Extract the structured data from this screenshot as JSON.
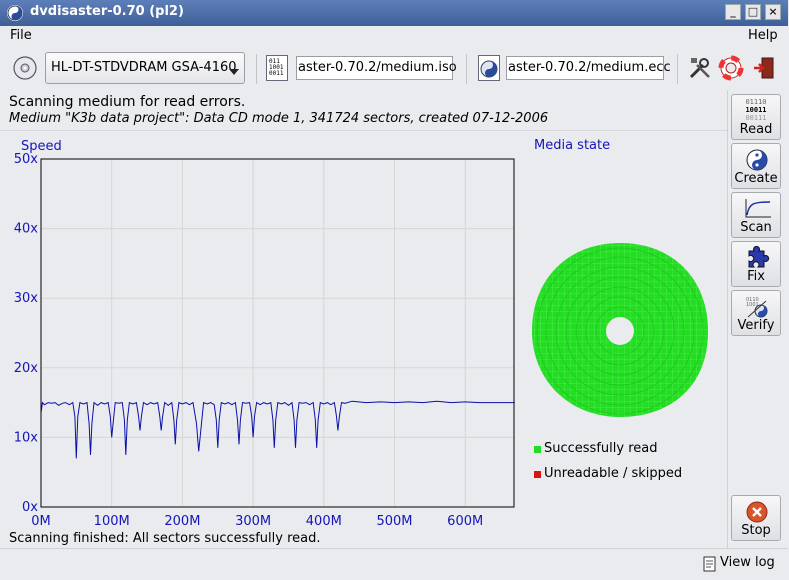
{
  "window": {
    "title": "dvdisaster-0.70 (pl2)"
  },
  "menu": {
    "file": "File",
    "help": "Help"
  },
  "toolbar": {
    "drive": "HL-DT-STDVDRAM GSA-4160",
    "image_file": "aster-0.70.2/medium.iso",
    "ecc_file": "aster-0.70.2/medium.ecc"
  },
  "status": {
    "heading": "Scanning medium for read errors.",
    "medium_info": "Medium \"K3b data project\": Data CD mode 1, 341724 sectors, created 07-12-2006",
    "result": "Scanning finished: All sectors successfully read."
  },
  "speed_chart": {
    "title": "Speed"
  },
  "media_state": {
    "title": "Media state",
    "legend": [
      {
        "label": "Successfully read",
        "color": "#22dd22"
      },
      {
        "label": "Unreadable / skipped",
        "color": "#dd1111"
      }
    ]
  },
  "sidebar": {
    "read": "Read",
    "create": "Create",
    "scan": "Scan",
    "fix": "Fix",
    "verify": "Verify",
    "stop": "Stop",
    "read_icon_lines": [
      "01110",
      "10011",
      "00111"
    ]
  },
  "footer": {
    "view_log": "View log"
  },
  "chart_data": {
    "type": "line",
    "title": "Speed",
    "xlabel": "",
    "ylabel": "",
    "xlim": [
      0,
      670
    ],
    "ylim": [
      0,
      50
    ],
    "x_ticks": [
      "0M",
      "100M",
      "200M",
      "300M",
      "400M",
      "500M",
      "600M"
    ],
    "y_ticks": [
      "0x",
      "10x",
      "20x",
      "30x",
      "40x",
      "50x"
    ],
    "grid": true,
    "series": [
      {
        "color": "#0a10a8",
        "x": [
          0,
          2,
          5,
          10,
          15,
          20,
          25,
          30,
          35,
          40,
          45,
          48,
          50,
          52,
          55,
          60,
          65,
          68,
          70,
          72,
          75,
          80,
          85,
          90,
          95,
          98,
          100,
          103,
          105,
          110,
          115,
          118,
          120,
          122,
          125,
          130,
          135,
          138,
          140,
          142,
          145,
          150,
          155,
          160,
          165,
          168,
          170,
          172,
          175,
          180,
          185,
          188,
          190,
          192,
          195,
          200,
          205,
          210,
          215,
          220,
          223,
          225,
          227,
          230,
          235,
          240,
          245,
          248,
          250,
          252,
          255,
          260,
          265,
          270,
          275,
          278,
          280,
          282,
          285,
          290,
          295,
          298,
          300,
          302,
          305,
          310,
          315,
          320,
          325,
          328,
          330,
          332,
          335,
          340,
          345,
          350,
          355,
          358,
          360,
          362,
          365,
          370,
          375,
          380,
          385,
          388,
          390,
          392,
          395,
          400,
          405,
          410,
          415,
          418,
          420,
          422,
          425,
          430,
          440,
          460,
          480,
          500,
          520,
          540,
          560,
          580,
          600,
          620,
          640,
          660,
          670
        ],
        "y": [
          13.5,
          15,
          14.7,
          15,
          14.9,
          15,
          14.6,
          14.9,
          15,
          14.7,
          15,
          13,
          7,
          13,
          15,
          14.8,
          15,
          12,
          7.5,
          12,
          15,
          14.6,
          15,
          14.8,
          15,
          13,
          10,
          13,
          15,
          14.9,
          15,
          12.5,
          7.5,
          12.5,
          15,
          14.8,
          15,
          13,
          11,
          13,
          15,
          14.7,
          15,
          14.8,
          15,
          13,
          11,
          13,
          15,
          14.6,
          15,
          12.5,
          9,
          12.5,
          15,
          14.8,
          15,
          14.7,
          15,
          12,
          8,
          10,
          12,
          15,
          14.8,
          15,
          14.7,
          12.5,
          8.5,
          12.5,
          15,
          14.8,
          15,
          14.7,
          15,
          12.5,
          9,
          12.5,
          15,
          14.9,
          15,
          13,
          10,
          13,
          15,
          14.7,
          15,
          14.8,
          15,
          12.5,
          8.5,
          12.5,
          15,
          14.8,
          15,
          14.6,
          15,
          12.5,
          8.5,
          12.5,
          15,
          14.9,
          15,
          14.7,
          15,
          12.5,
          8.5,
          12.5,
          15,
          14.8,
          15,
          14.7,
          15,
          13,
          11,
          13,
          15,
          14.9,
          15.2,
          15,
          15.1,
          15,
          15.1,
          15,
          15.2,
          15,
          15.1,
          15,
          15,
          15,
          15
        ]
      }
    ]
  }
}
